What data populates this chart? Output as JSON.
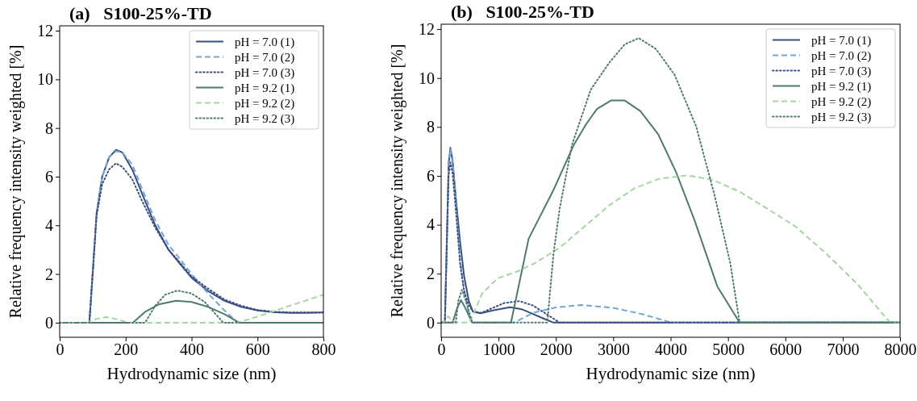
{
  "chart_data": [
    {
      "type": "line",
      "title": "(a)   S100-25%-TD",
      "xlabel": "Hydrodynamic size (nm)",
      "ylabel": "Relative frequency intensity weighted [%]",
      "xlim": [
        0,
        800
      ],
      "ylim": [
        -0.6,
        12.2
      ],
      "xticks": [
        0,
        200,
        400,
        600,
        800
      ],
      "yticks": [
        0,
        2,
        4,
        6,
        8,
        10,
        12
      ],
      "grid": false,
      "legend": "top right",
      "series": [
        {
          "name": "pH = 7.0 (1)",
          "color": "#3a4f80",
          "line_style": "solid",
          "x": [
            0,
            90,
            100,
            112,
            129,
            150,
            171,
            190,
            220,
            250,
            290,
            330,
            360,
            400,
            450,
            500,
            550,
            600,
            650,
            700,
            750,
            800
          ],
          "values": [
            0,
            0,
            2.0,
            4.5,
            6.0,
            6.8,
            7.1,
            7.0,
            6.3,
            5.3,
            4.0,
            3.0,
            2.5,
            1.85,
            1.3,
            0.9,
            0.65,
            0.5,
            0.43,
            0.4,
            0.4,
            0.42
          ]
        },
        {
          "name": "pH = 7.0 (2)",
          "color": "#72a6d6",
          "line_style": "dashed",
          "x": [
            0,
            90,
            100,
            112,
            129,
            150,
            171,
            190,
            220,
            250,
            290,
            330,
            360,
            400,
            450,
            500,
            540,
            800
          ],
          "values": [
            0,
            0,
            2.0,
            4.5,
            6.0,
            6.8,
            7.05,
            7.0,
            6.5,
            5.5,
            4.2,
            3.2,
            2.7,
            2.0,
            1.2,
            0.5,
            0,
            0
          ]
        },
        {
          "name": "pH = 7.0 (3)",
          "color": "#3a4f80",
          "line_style": "dotted",
          "x": [
            0,
            90,
            100,
            112,
            129,
            150,
            171,
            190,
            220,
            250,
            290,
            330,
            360,
            400,
            450,
            500,
            550,
            600,
            650,
            700,
            800
          ],
          "values": [
            0,
            0,
            2.0,
            4.4,
            5.7,
            6.3,
            6.55,
            6.4,
            5.9,
            5.0,
            3.9,
            3.0,
            2.55,
            1.9,
            1.4,
            0.95,
            0.7,
            0.52,
            0.45,
            0.42,
            0.42
          ]
        },
        {
          "name": "pH = 9.2 (1)",
          "color": "#4e7a72",
          "line_style": "solid",
          "x": [
            0,
            222,
            260,
            300,
            353,
            400,
            450,
            500,
            544,
            800
          ],
          "values": [
            0,
            0,
            0.45,
            0.75,
            0.9,
            0.85,
            0.65,
            0.35,
            0,
            0
          ]
        },
        {
          "name": "pH = 9.2 (2)",
          "color": "#a6d5a0",
          "line_style": "dashed",
          "x": [
            0,
            88,
            110,
            141,
            170,
            210,
            540,
            600,
            700,
            800
          ],
          "values": [
            0,
            0,
            0.15,
            0.23,
            0.15,
            0,
            0,
            0.25,
            0.7,
            1.15
          ]
        },
        {
          "name": "pH = 9.2 (3)",
          "color": "#4e7a72",
          "line_style": "dotted",
          "x": [
            0,
            259,
            290,
            320,
            357,
            400,
            440,
            470,
            496,
            800
          ],
          "values": [
            0,
            0,
            0.7,
            1.15,
            1.32,
            1.2,
            0.85,
            0.4,
            0,
            0
          ]
        }
      ]
    },
    {
      "type": "line",
      "title": "(b)   S100-25%-TD",
      "xlabel": "Hydrodynamic size (nm)",
      "ylabel": "Relative frequency intensity weighted [%]",
      "xlim": [
        0,
        8000
      ],
      "ylim": [
        -0.6,
        12.2
      ],
      "xticks": [
        0,
        1000,
        2000,
        3000,
        4000,
        5000,
        6000,
        7000,
        8000
      ],
      "yticks": [
        0,
        2,
        4,
        6,
        8,
        10,
        12
      ],
      "grid": false,
      "legend": "top right",
      "series": [
        {
          "name": "pH = 7.0 (1)",
          "color": "#3a4f80",
          "line_style": "solid",
          "x": [
            0,
            65,
            100,
            130,
            162,
            200,
            260,
            330,
            400,
            480,
            552,
            687,
            900,
            1200,
            1400,
            1600,
            1800,
            1958,
            8000
          ],
          "values": [
            0,
            0,
            3.5,
            6.5,
            7.15,
            6.6,
            5.0,
            3.3,
            1.9,
            0.9,
            0.45,
            0.38,
            0.5,
            0.63,
            0.55,
            0.35,
            0.15,
            0,
            0
          ]
        },
        {
          "name": "pH = 7.0 (2)",
          "color": "#72a6d6",
          "line_style": "dashed",
          "x": [
            0,
            65,
            100,
            130,
            162,
            200,
            260,
            330,
            400,
            480,
            540,
            1280,
            1600,
            2000,
            2445,
            3000,
            3500,
            4013,
            8000
          ],
          "values": [
            0,
            0,
            3.4,
            6.4,
            7.1,
            6.5,
            4.8,
            2.6,
            1.3,
            0.4,
            0,
            0,
            0.4,
            0.62,
            0.72,
            0.6,
            0.35,
            0,
            0
          ]
        },
        {
          "name": "pH = 7.0 (3)",
          "color": "#3a4f80",
          "line_style": "dotted",
          "x": [
            0,
            65,
            100,
            130,
            162,
            200,
            260,
            330,
            400,
            480,
            560,
            700,
            900,
            1100,
            1363,
            1600,
            1800,
            2066,
            8000
          ],
          "values": [
            0,
            0,
            3.2,
            6.0,
            6.55,
            6.1,
            4.5,
            2.4,
            1.3,
            0.7,
            0.45,
            0.4,
            0.6,
            0.8,
            0.88,
            0.7,
            0.4,
            0,
            0
          ]
        },
        {
          "name": "pH = 9.2 (1)",
          "color": "#4e7a72",
          "line_style": "solid",
          "x": [
            0,
            200,
            280,
            346,
            420,
            541,
            1217,
            1525,
            1958,
            2309,
            2526,
            2715,
            2959,
            3202,
            3472,
            3786,
            4094,
            4419,
            4814,
            5203,
            8000
          ],
          "values": [
            0,
            0,
            0.6,
            0.92,
            0.6,
            0,
            0,
            3.43,
            5.42,
            7.25,
            8.11,
            8.73,
            9.08,
            9.08,
            8.65,
            7.69,
            6.16,
            4.17,
            1.48,
            0,
            0
          ]
        },
        {
          "name": "pH = 9.2 (2)",
          "color": "#a6d5a0",
          "line_style": "dashed",
          "x": [
            0,
            60,
            119,
            180,
            254,
            497,
            714,
            984,
            1363,
            1633,
            2066,
            2499,
            2932,
            3364,
            3797,
            4284,
            4717,
            5203,
            5635,
            6176,
            6717,
            7258,
            7826,
            8000
          ],
          "values": [
            0,
            0,
            0.26,
            0.1,
            0,
            0,
            1.19,
            1.81,
            2.12,
            2.43,
            3.06,
            3.93,
            4.8,
            5.48,
            5.88,
            6.02,
            5.85,
            5.35,
            4.73,
            3.93,
            2.81,
            1.57,
            0,
            0
          ]
        },
        {
          "name": "pH = 9.2 (3)",
          "color": "#4e7a72",
          "line_style": "dotted",
          "x": [
            0,
            254,
            300,
            362,
            430,
            541,
            1850,
            1958,
            2066,
            2282,
            2607,
            2932,
            3202,
            3446,
            3743,
            4068,
            4446,
            4770,
            5040,
            5203,
            8000
          ],
          "values": [
            0,
            0,
            0.9,
            1.34,
            0.9,
            0,
            0,
            2.81,
            4.67,
            7.28,
            9.52,
            10.63,
            11.38,
            11.63,
            11.19,
            10.14,
            8.02,
            5.17,
            2.43,
            0,
            0
          ]
        }
      ]
    }
  ]
}
